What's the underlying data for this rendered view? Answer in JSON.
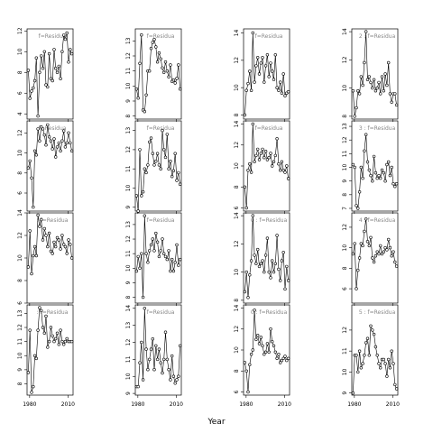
{
  "chart_data": {
    "type": "line",
    "xlabel": "Year",
    "x_ticks": [
      1980,
      2010
    ],
    "x_range": [
      1978,
      2014
    ],
    "panel_label_prefix": "f=Residuals",
    "panel_labels": [
      "f=Residua",
      "f=Residua",
      "f=Residua",
      "2 : f=Residua",
      "f=Residua",
      "f=Residua",
      "f=Residua",
      "3 : f=Residua",
      ": f=Residua",
      "f=Residua",
      "0 : f=Residua",
      "4 : f=Residua",
      ": f=Residua",
      "f=Residua",
      "0 : f=Residua",
      "5 : f=Residua"
    ],
    "panels": [
      {
        "row": 0,
        "col": 0,
        "ylim": [
          3.5,
          12.2
        ],
        "yticks": [
          4,
          6,
          8,
          10,
          12
        ],
        "values": [
          8.2,
          5.5,
          6.2,
          6.5,
          7.2,
          9.4,
          3.8,
          8.0,
          9.6,
          8.4,
          10.0,
          6.8,
          6.6,
          9.8,
          7.4,
          7.2,
          10.2,
          8.4,
          8.0,
          8.6,
          7.4,
          10.0,
          11.6,
          11.2,
          11.8,
          9.0,
          10.2,
          9.8
        ]
      },
      {
        "row": 0,
        "col": 1,
        "ylim": [
          7.8,
          13.8
        ],
        "yticks": [
          8,
          9,
          10,
          11,
          12,
          13
        ],
        "values": [
          9.8,
          9.2,
          11.5,
          13.4,
          8.4,
          8.3,
          9.4,
          11.0,
          11.0,
          12.5,
          12.9,
          13.1,
          12.6,
          11.6,
          12.2,
          11.8,
          11.2,
          10.9,
          11.6,
          11.0,
          10.6,
          11.4,
          10.3,
          10.4,
          10.2,
          10.5,
          11.4,
          9.8
        ]
      },
      {
        "row": 0,
        "col": 2,
        "ylim": [
          7.7,
          14.3
        ],
        "yticks": [
          8,
          10,
          12,
          14
        ],
        "values": [
          8.0,
          9.8,
          10.3,
          11.2,
          9.8,
          14.0,
          10.4,
          11.6,
          12.2,
          11.0,
          11.8,
          12.2,
          10.4,
          11.6,
          12.4,
          10.8,
          11.8,
          11.2,
          10.6,
          12.4,
          10.0,
          9.8,
          10.4,
          9.6,
          11.0,
          9.4,
          9.6,
          9.7
        ]
      },
      {
        "row": 0,
        "col": 3,
        "ylim": [
          7.8,
          14.2
        ],
        "yticks": [
          8,
          10,
          12,
          14
        ],
        "values": [
          9.8,
          8.0,
          8.6,
          9.8,
          9.6,
          10.8,
          10.2,
          11.8,
          14.0,
          10.6,
          10.8,
          10.4,
          10.0,
          10.6,
          9.8,
          10.0,
          10.4,
          9.6,
          10.8,
          9.8,
          11.0,
          10.2,
          11.8,
          9.6,
          9.0,
          9.6,
          9.6,
          8.8
        ]
      },
      {
        "row": 1,
        "col": 0,
        "ylim": [
          4.2,
          13.2
        ],
        "yticks": [
          6,
          8,
          10,
          12
        ],
        "values": [
          8.5,
          9.2,
          7.5,
          4.6,
          10.2,
          9.8,
          12.4,
          11.2,
          12.6,
          12.4,
          11.8,
          10.8,
          12.8,
          11.6,
          11.2,
          10.4,
          11.4,
          9.6,
          10.6,
          11.0,
          10.2,
          11.2,
          12.2,
          10.6,
          11.0,
          12.0,
          11.0,
          10.2
        ]
      },
      {
        "row": 1,
        "col": 1,
        "ylim": [
          8.8,
          13.5
        ],
        "yticks": [
          9,
          10,
          11,
          12,
          13
        ],
        "values": [
          9.6,
          8.8,
          12.0,
          9.6,
          9.8,
          11.0,
          10.8,
          11.2,
          12.4,
          12.6,
          11.8,
          11.2,
          11.4,
          11.8,
          11.2,
          11.0,
          13.0,
          12.0,
          11.6,
          12.8,
          11.0,
          11.4,
          10.6,
          10.9,
          11.8,
          10.4,
          10.8,
          10.2
        ]
      },
      {
        "row": 1,
        "col": 2,
        "ylim": [
          5.7,
          14.3
        ],
        "yticks": [
          6,
          8,
          10,
          12,
          14
        ],
        "values": [
          8.0,
          6.0,
          9.6,
          10.2,
          9.4,
          14.0,
          10.4,
          11.0,
          11.6,
          10.6,
          11.2,
          11.6,
          10.8,
          11.4,
          10.6,
          10.8,
          11.2,
          10.0,
          10.4,
          11.0,
          12.6,
          10.2,
          9.6,
          10.4,
          9.6,
          9.4,
          10.0,
          8.8
        ]
      },
      {
        "row": 1,
        "col": 3,
        "ylim": [
          6.8,
          13.4
        ],
        "yticks": [
          7,
          8,
          9,
          10,
          11,
          12,
          13
        ],
        "values": [
          10.2,
          10.0,
          7.2,
          7.0,
          8.2,
          10.0,
          9.2,
          11.2,
          12.4,
          10.4,
          9.8,
          9.4,
          9.0,
          10.8,
          9.6,
          9.2,
          9.4,
          9.2,
          9.8,
          9.6,
          9.0,
          10.2,
          10.4,
          9.4,
          10.0,
          8.8,
          8.6,
          8.8
        ]
      },
      {
        "row": 2,
        "col": 0,
        "ylim": [
          6.0,
          14.0
        ],
        "yticks": [
          6,
          8,
          10,
          12,
          14
        ],
        "values": [
          9.2,
          12.4,
          8.6,
          10.2,
          11.0,
          10.2,
          13.8,
          12.8,
          13.4,
          11.6,
          12.6,
          12.0,
          11.0,
          12.2,
          10.6,
          10.4,
          11.4,
          11.0,
          11.8,
          11.6,
          10.8,
          12.0,
          11.2,
          11.0,
          10.4,
          11.6,
          11.2,
          10.0
        ]
      },
      {
        "row": 2,
        "col": 1,
        "ylim": [
          7.6,
          13.8
        ],
        "yticks": [
          8,
          9,
          10,
          11,
          12,
          13
        ],
        "values": [
          9.8,
          10.8,
          10.0,
          11.0,
          8.0,
          13.6,
          11.0,
          10.4,
          11.2,
          11.6,
          12.0,
          11.2,
          12.4,
          11.8,
          10.8,
          11.2,
          12.0,
          11.0,
          10.8,
          10.6,
          11.2,
          9.8,
          10.6,
          9.8,
          10.4,
          11.6,
          10.2,
          10.6
        ]
      },
      {
        "row": 2,
        "col": 2,
        "ylim": [
          7.8,
          14.2
        ],
        "yticks": [
          8,
          10,
          12,
          14
        ],
        "values": [
          8.6,
          10.0,
          8.2,
          9.8,
          10.8,
          14.0,
          11.2,
          10.6,
          11.6,
          10.4,
          10.6,
          10.8,
          10.0,
          11.2,
          12.4,
          10.0,
          9.6,
          10.8,
          10.0,
          10.6,
          12.6,
          10.2,
          9.4,
          10.8,
          11.4,
          8.8,
          10.4,
          9.4
        ]
      },
      {
        "row": 2,
        "col": 3,
        "ylim": [
          4.6,
          13.4
        ],
        "yticks": [
          6,
          8,
          10,
          12
        ],
        "values": [
          9.4,
          10.4,
          6.0,
          7.8,
          9.0,
          10.4,
          10.2,
          11.6,
          12.8,
          10.6,
          10.2,
          11.0,
          9.0,
          8.6,
          9.2,
          9.6,
          9.4,
          10.2,
          9.4,
          9.6,
          10.0,
          9.8,
          10.8,
          10.0,
          9.2,
          9.6,
          8.6,
          8.2
        ]
      },
      {
        "row": 3,
        "col": 0,
        "ylim": [
          7.2,
          13.6
        ],
        "yticks": [
          8,
          9,
          10,
          11,
          12,
          13
        ],
        "values": [
          8.8,
          11.8,
          7.4,
          7.8,
          10.0,
          9.8,
          11.8,
          13.4,
          13.2,
          12.0,
          11.6,
          12.8,
          10.6,
          11.0,
          12.0,
          11.4,
          11.0,
          11.2,
          11.6,
          10.8,
          11.8,
          11.0,
          10.8,
          11.0,
          11.2,
          11.0,
          11.0,
          11.0
        ]
      },
      {
        "row": 3,
        "col": 1,
        "ylim": [
          8.9,
          14.2
        ],
        "yticks": [
          9,
          10,
          11,
          12,
          13,
          14
        ],
        "values": [
          9.4,
          9.4,
          10.8,
          12.0,
          9.8,
          14.0,
          11.6,
          10.4,
          11.0,
          11.6,
          12.2,
          10.4,
          11.8,
          11.0,
          11.6,
          10.8,
          10.2,
          11.0,
          12.6,
          11.0,
          10.4,
          9.8,
          11.2,
          10.0,
          9.6,
          9.8,
          10.0,
          11.8
        ]
      },
      {
        "row": 3,
        "col": 2,
        "ylim": [
          5.7,
          14.3
        ],
        "yticks": [
          6,
          8,
          10,
          12,
          14
        ],
        "values": [
          8.8,
          8.0,
          6.0,
          8.6,
          9.6,
          10.0,
          13.8,
          11.0,
          11.4,
          10.6,
          11.2,
          10.4,
          9.6,
          9.8,
          10.6,
          9.8,
          12.0,
          10.8,
          10.4,
          9.8,
          9.2,
          9.6,
          8.8,
          9.0,
          9.2,
          9.4,
          9.0,
          9.2
        ]
      },
      {
        "row": 3,
        "col": 3,
        "ylim": [
          8.9,
          13.2
        ],
        "yticks": [
          9.0,
          10.0,
          11.0,
          12.0
        ],
        "values": [
          9.0,
          10.8,
          10.8,
          10.0,
          11.0,
          10.2,
          10.4,
          10.8,
          11.4,
          11.6,
          10.8,
          12.2,
          12.0,
          11.8,
          11.2,
          10.8,
          10.4,
          10.2,
          10.6,
          10.6,
          10.4,
          9.8,
          10.6,
          10.2,
          11.0,
          10.4,
          9.4,
          9.2
        ]
      }
    ]
  }
}
